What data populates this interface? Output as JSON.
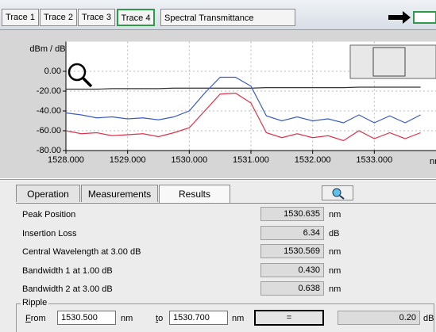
{
  "tabs": [
    "Trace 1",
    "Trace 2",
    "Trace 3",
    "Trace 4"
  ],
  "view_title": "Spectral Transmittance",
  "chart_data": {
    "type": "line",
    "ylabel": "dBm / dB",
    "xlabel": "nm",
    "x": [
      1528,
      1528.25,
      1528.5,
      1528.75,
      1529,
      1529.25,
      1529.5,
      1529.75,
      1530,
      1530.25,
      1530.5,
      1530.75,
      1531,
      1531.25,
      1531.5,
      1531.75,
      1532,
      1532.25,
      1532.5,
      1532.75,
      1533,
      1533.25,
      1533.5,
      1533.75
    ],
    "series": [
      {
        "color": "#333333",
        "values": [
          -18,
          -18,
          -18,
          -17.5,
          -17.5,
          -17.5,
          -17.5,
          -17,
          -17,
          -17,
          -17,
          -17,
          -17,
          -16.5,
          -16.5,
          -16.5,
          -16.5,
          -16.5,
          -16.5,
          -16,
          -16,
          -16,
          -16,
          -16
        ]
      },
      {
        "color": "#3a5bc4",
        "values": [
          -42,
          -44,
          -47,
          -46,
          -48,
          -47,
          -49,
          -46,
          -40,
          -22,
          -6,
          -6,
          -15,
          -45,
          -50,
          -46,
          -50,
          -48,
          -52,
          -44,
          -52,
          -45,
          -52,
          -44
        ]
      },
      {
        "color": "#e0304a",
        "values": [
          -60,
          -63,
          -62,
          -65,
          -64,
          -63,
          -66,
          -62,
          -57,
          -40,
          -23,
          -22,
          -32,
          -62,
          -67,
          -63,
          -67,
          -65,
          -70,
          -60,
          -68,
          -62,
          -68,
          -62
        ]
      }
    ],
    "xlim": [
      1528,
      1534
    ],
    "ylim": [
      -80,
      30
    ],
    "xticks": [
      {
        "value": 1528,
        "label": "1528.000"
      },
      {
        "value": 1529,
        "label": "1529.000"
      },
      {
        "value": 1530,
        "label": "1530.000"
      },
      {
        "value": 1531,
        "label": "1531.000"
      },
      {
        "value": 1532,
        "label": "1532.000"
      },
      {
        "value": 1533,
        "label": "1533.000"
      }
    ],
    "yticks": [
      {
        "value": 0,
        "label": "0.00"
      },
      {
        "value": -20,
        "label": "-20.00"
      },
      {
        "value": -40,
        "label": "-40.00"
      },
      {
        "value": -60,
        "label": "-60.00"
      },
      {
        "value": -80,
        "label": "-80.00"
      }
    ],
    "grid": true
  },
  "panel_tabs": [
    "Operation",
    "Measurements",
    "Results"
  ],
  "results": [
    {
      "label": "Peak Position",
      "value": "1530.635",
      "unit": "nm"
    },
    {
      "label": "Insertion Loss",
      "value": "6.34",
      "unit": "dB"
    },
    {
      "label": "Central Wavelength at 3.00 dB",
      "value": "1530.569",
      "unit": "nm"
    },
    {
      "label": "Bandwidth 1 at 1.00 dB",
      "value": "0.430",
      "unit": "nm"
    },
    {
      "label": "Bandwidth 2 at 3.00 dB",
      "value": "0.638",
      "unit": "nm"
    }
  ],
  "ripple": {
    "title": "Ripple",
    "from_label": "From",
    "from_value": "1530.500",
    "from_unit": "nm",
    "to_label": "to",
    "to_value": "1530.700",
    "to_unit": "nm",
    "button": "=",
    "result": "0.20",
    "result_unit": "dB"
  }
}
